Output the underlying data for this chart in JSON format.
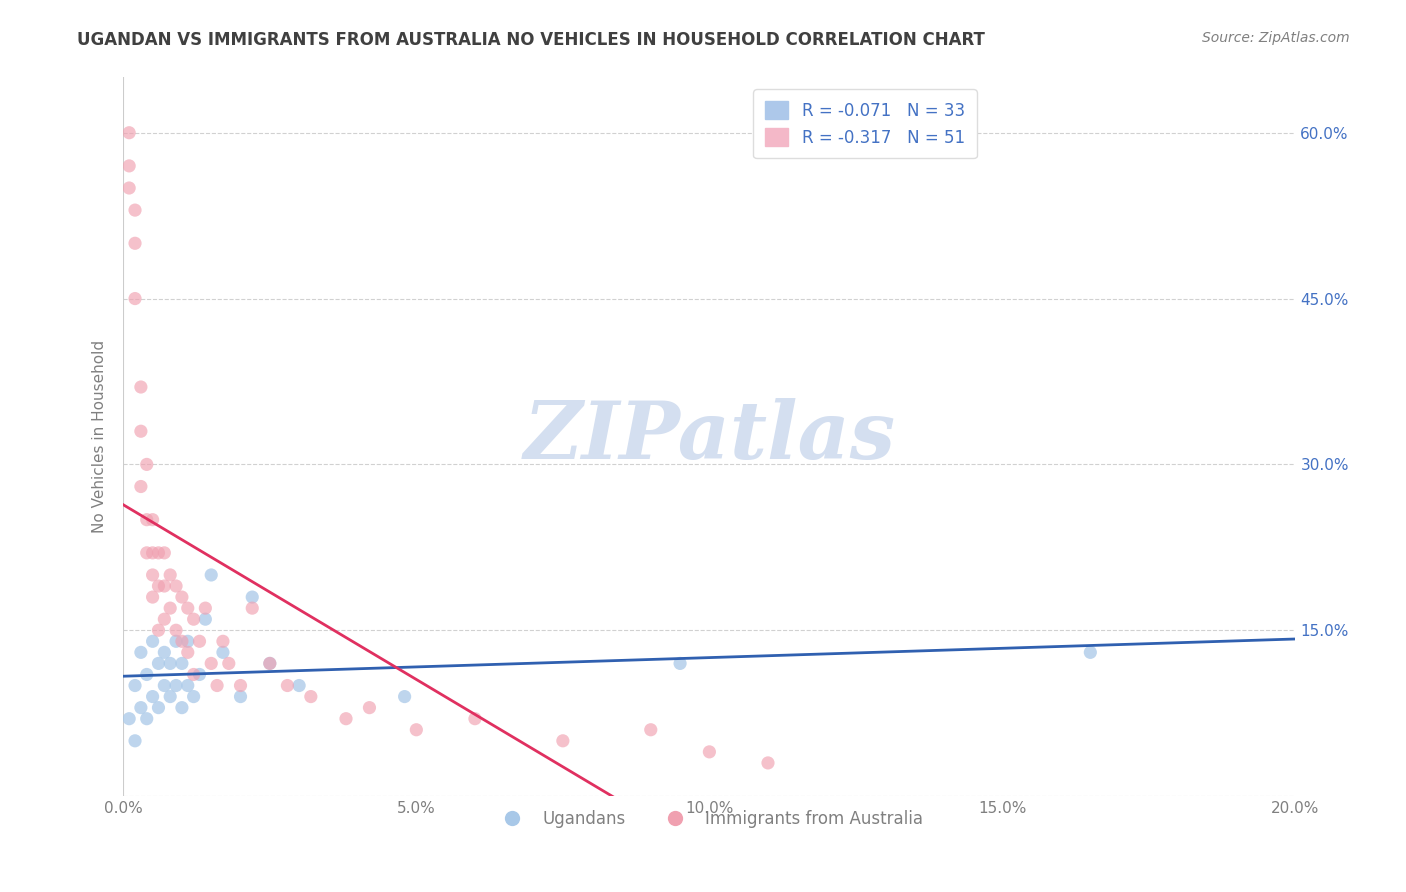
{
  "title": "UGANDAN VS IMMIGRANTS FROM AUSTRALIA NO VEHICLES IN HOUSEHOLD CORRELATION CHART",
  "source": "Source: ZipAtlas.com",
  "ylabel": "No Vehicles in Household",
  "xlim": [
    0.0,
    0.2
  ],
  "ylim": [
    0.0,
    0.65
  ],
  "right_yticks": [
    0.0,
    0.15,
    0.3,
    0.45,
    0.6
  ],
  "right_yticklabels": [
    "",
    "15.0%",
    "30.0%",
    "45.0%",
    "60.0%"
  ],
  "xticks": [
    0.0,
    0.05,
    0.1,
    0.15,
    0.2
  ],
  "xticklabels": [
    "0.0%",
    "5.0%",
    "10.0%",
    "15.0%",
    "20.0%"
  ],
  "legend_labels": [
    "Ugandans",
    "Immigrants from Australia"
  ],
  "legend_R": [
    -0.071,
    -0.317
  ],
  "legend_N": [
    33,
    51
  ],
  "series_blue": {
    "color": "#a8c8e8",
    "line_color": "#3060b0",
    "alpha": 0.75,
    "x": [
      0.001,
      0.002,
      0.002,
      0.003,
      0.003,
      0.004,
      0.004,
      0.005,
      0.005,
      0.006,
      0.006,
      0.007,
      0.007,
      0.008,
      0.008,
      0.009,
      0.009,
      0.01,
      0.01,
      0.011,
      0.011,
      0.012,
      0.013,
      0.014,
      0.015,
      0.017,
      0.02,
      0.022,
      0.025,
      0.03,
      0.048,
      0.095,
      0.165
    ],
    "y": [
      0.07,
      0.05,
      0.1,
      0.08,
      0.13,
      0.07,
      0.11,
      0.09,
      0.14,
      0.08,
      0.12,
      0.1,
      0.13,
      0.09,
      0.12,
      0.1,
      0.14,
      0.08,
      0.12,
      0.1,
      0.14,
      0.09,
      0.11,
      0.16,
      0.2,
      0.13,
      0.09,
      0.18,
      0.12,
      0.1,
      0.09,
      0.12,
      0.13
    ]
  },
  "series_pink": {
    "color": "#f0a0b0",
    "line_color": "#e03060",
    "alpha": 0.65,
    "x": [
      0.001,
      0.001,
      0.001,
      0.002,
      0.002,
      0.002,
      0.003,
      0.003,
      0.003,
      0.004,
      0.004,
      0.004,
      0.005,
      0.005,
      0.005,
      0.005,
      0.006,
      0.006,
      0.006,
      0.007,
      0.007,
      0.007,
      0.008,
      0.008,
      0.009,
      0.009,
      0.01,
      0.01,
      0.011,
      0.011,
      0.012,
      0.012,
      0.013,
      0.014,
      0.015,
      0.016,
      0.017,
      0.018,
      0.02,
      0.022,
      0.025,
      0.028,
      0.032,
      0.038,
      0.042,
      0.05,
      0.06,
      0.075,
      0.09,
      0.1,
      0.11
    ],
    "y": [
      0.55,
      0.6,
      0.57,
      0.5,
      0.53,
      0.45,
      0.37,
      0.33,
      0.28,
      0.3,
      0.25,
      0.22,
      0.25,
      0.2,
      0.22,
      0.18,
      0.22,
      0.19,
      0.15,
      0.22,
      0.19,
      0.16,
      0.2,
      0.17,
      0.19,
      0.15,
      0.18,
      0.14,
      0.17,
      0.13,
      0.16,
      0.11,
      0.14,
      0.17,
      0.12,
      0.1,
      0.14,
      0.12,
      0.1,
      0.17,
      0.12,
      0.1,
      0.09,
      0.07,
      0.08,
      0.06,
      0.07,
      0.05,
      0.06,
      0.04,
      0.03
    ]
  },
  "background_color": "#ffffff",
  "grid_color": "#cccccc",
  "title_color": "#404040",
  "source_color": "#808080",
  "axis_color": "#808080",
  "watermark_color": "#d4dff0",
  "watermark_text": "ZIPatlas"
}
